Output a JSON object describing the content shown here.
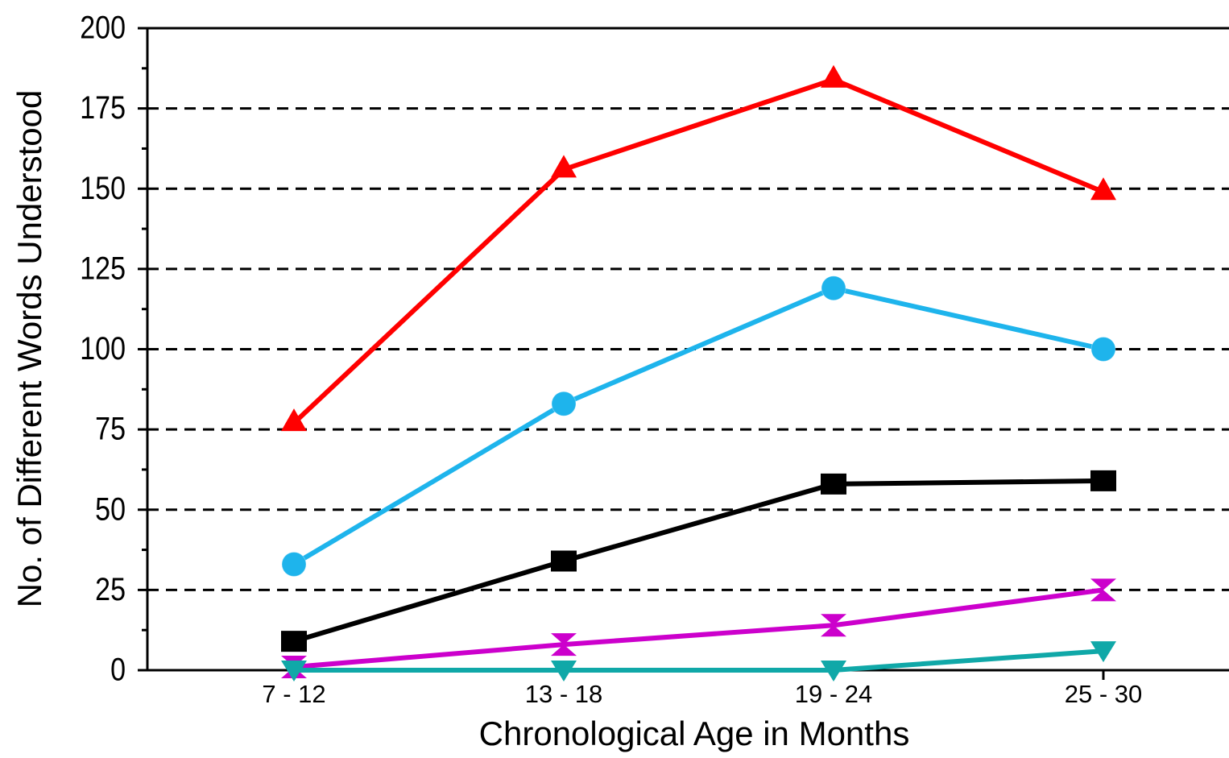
{
  "chart_data": {
    "type": "line",
    "x_label": "Chronological Age in Months",
    "y_label": "No. of Different Words Understood",
    "categories": [
      "7 - 12",
      "13 - 18",
      "19 - 24",
      "25 - 30"
    ],
    "series": [
      {
        "color": "#ff0000",
        "marker": "triangle-up",
        "values": [
          77,
          156,
          184,
          149
        ]
      },
      {
        "color": "#1eb4ec",
        "marker": "circle",
        "values": [
          33,
          83,
          119,
          100
        ]
      },
      {
        "color": "#000000",
        "marker": "square",
        "values": [
          9,
          34,
          58,
          59
        ]
      },
      {
        "color": "#cc00cc",
        "marker": "hourglass",
        "values": [
          1,
          8,
          14,
          25
        ]
      },
      {
        "color": "#10a8a8",
        "marker": "triangle-down",
        "values": [
          0,
          0,
          0,
          6
        ]
      }
    ],
    "ylim": [
      0,
      200
    ],
    "yticks": [
      0,
      25,
      50,
      75,
      100,
      125,
      150,
      175,
      200
    ],
    "minor_yticks": [
      12.5,
      37.5,
      62.5,
      87.5,
      112.5,
      137.5,
      162.5,
      187.5
    ],
    "grid": true
  }
}
